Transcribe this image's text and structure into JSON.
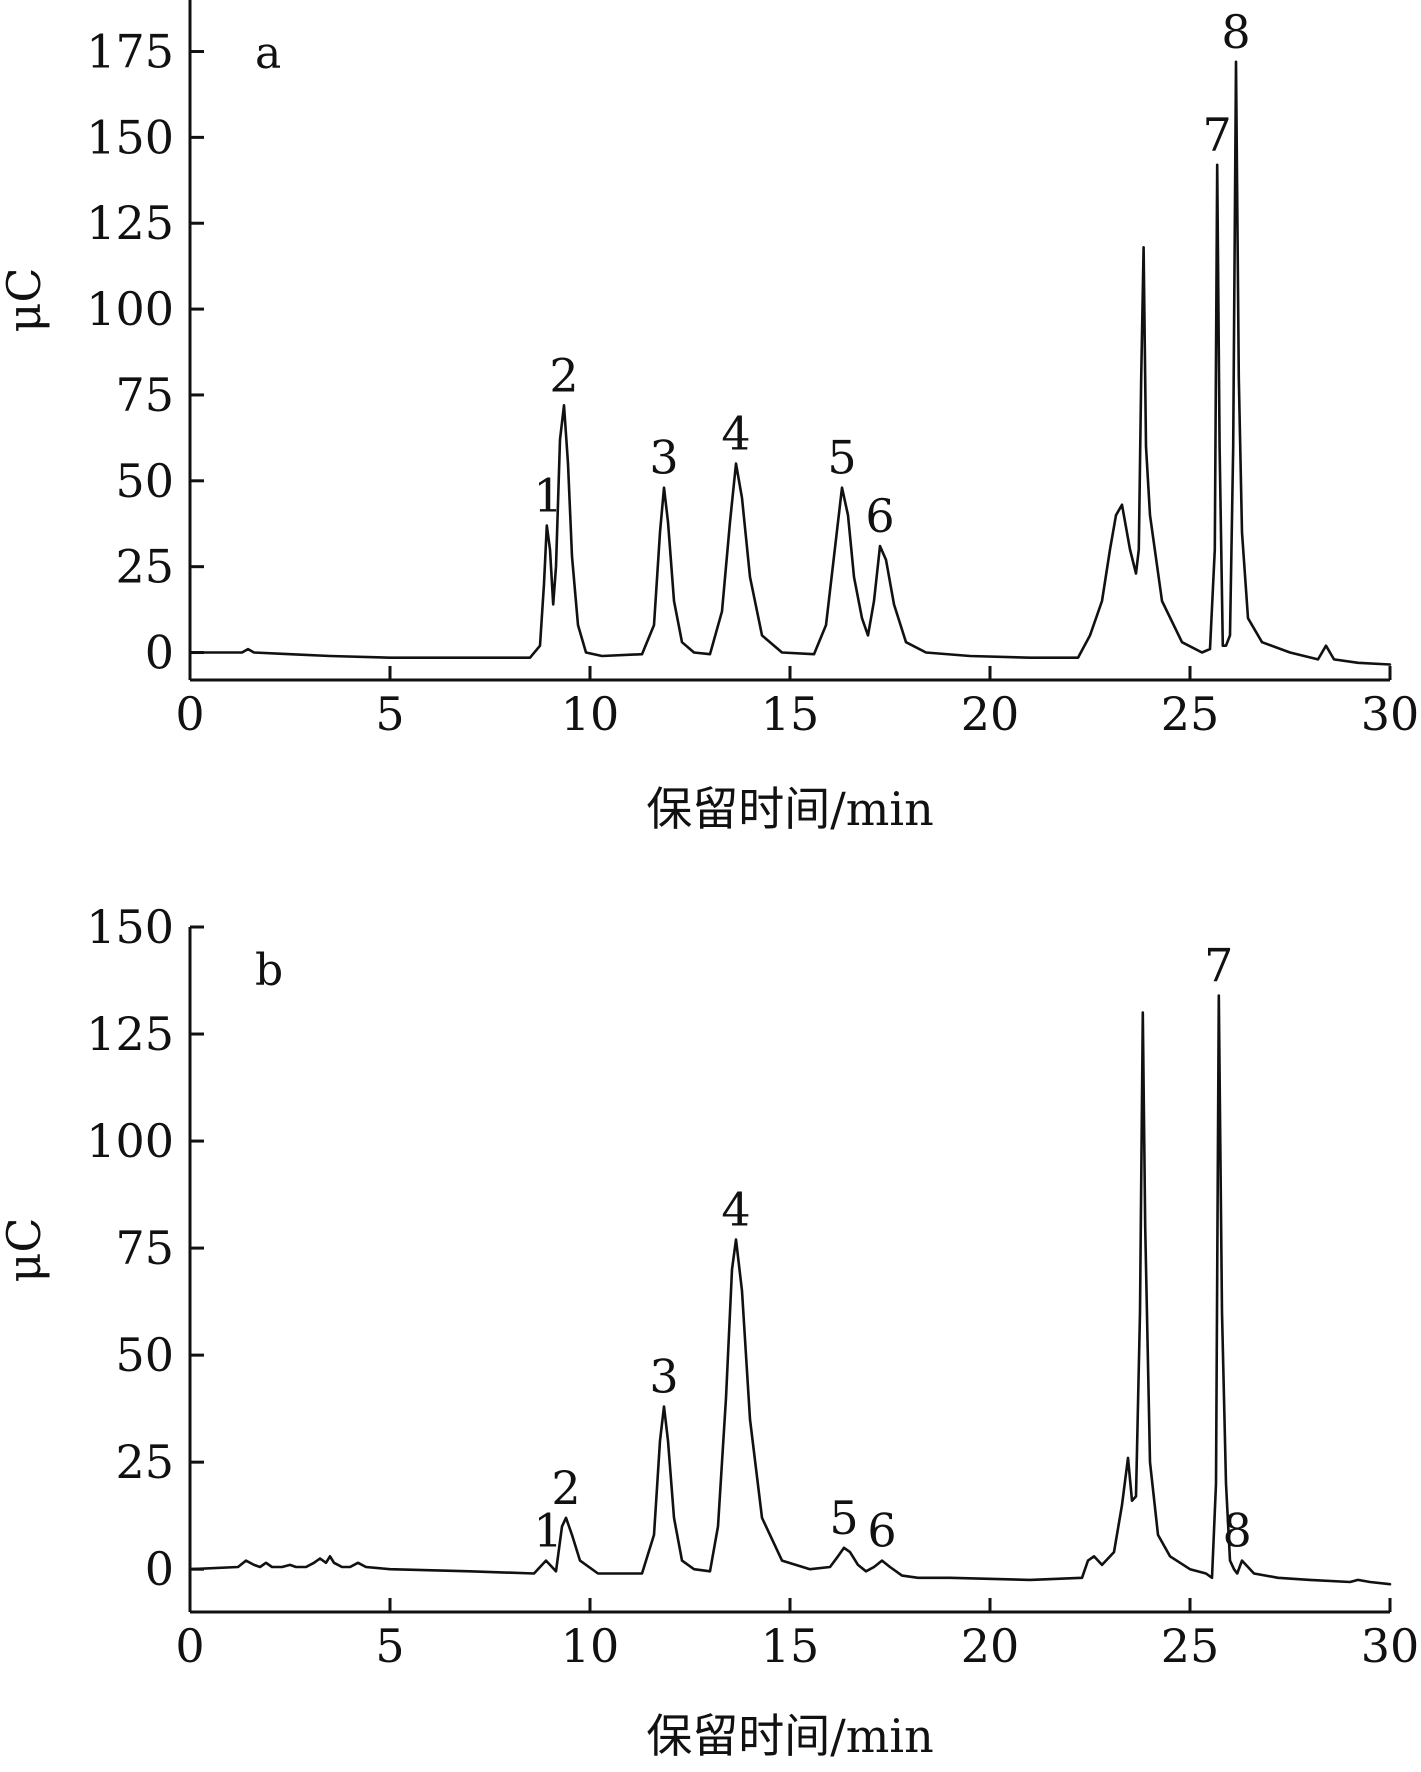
{
  "chart_data": [
    {
      "type": "line",
      "panel_label": "a",
      "xlabel": "保留时间/min",
      "ylabel": "μC",
      "xlim": [
        0,
        30
      ],
      "ylim": [
        -8,
        190
      ],
      "xticks": [
        0,
        5,
        10,
        15,
        20,
        25,
        30
      ],
      "yticks": [
        0,
        25,
        50,
        75,
        100,
        125,
        150,
        175
      ],
      "series": [
        {
          "x": [
            0,
            1.3,
            1.45,
            1.6,
            2.5,
            3.5,
            5,
            7,
            8.5,
            8.75,
            8.85,
            8.92,
            9.0,
            9.08,
            9.15,
            9.25,
            9.35,
            9.45,
            9.55,
            9.7,
            9.9,
            10.3,
            11.3,
            11.6,
            11.75,
            11.85,
            11.95,
            12.1,
            12.3,
            12.6,
            13.0,
            13.3,
            13.5,
            13.65,
            13.8,
            14.0,
            14.3,
            14.8,
            15.6,
            15.9,
            16.1,
            16.3,
            16.45,
            16.6,
            16.8,
            16.95,
            17.1,
            17.25,
            17.4,
            17.6,
            17.9,
            18.4,
            19.5,
            21,
            22.2,
            22.5,
            22.8,
            23.0,
            23.15,
            23.3,
            23.5,
            23.65,
            23.72,
            23.78,
            23.84,
            23.9,
            24.0,
            24.3,
            24.8,
            25.3,
            25.5,
            25.62,
            25.68,
            25.74,
            25.82,
            25.9,
            26.0,
            26.08,
            26.15,
            26.22,
            26.3,
            26.45,
            26.8,
            27.5,
            28.2,
            28.4,
            28.6,
            29.2,
            30
          ],
          "y": [
            0,
            0,
            1,
            0,
            -0.5,
            -1,
            -1.5,
            -1.5,
            -1.5,
            2,
            20,
            37,
            30,
            14,
            25,
            62,
            72,
            55,
            28,
            8,
            0,
            -1,
            -0.5,
            8,
            35,
            48,
            38,
            15,
            3,
            0,
            -0.5,
            12,
            38,
            55,
            45,
            22,
            5,
            0,
            -0.5,
            8,
            28,
            48,
            40,
            22,
            10,
            5,
            15,
            31,
            27,
            14,
            3,
            0,
            -1,
            -1.5,
            -1.5,
            5,
            15,
            30,
            40,
            43,
            30,
            23,
            30,
            80,
            118,
            60,
            40,
            15,
            3,
            0,
            1,
            30,
            142,
            60,
            2,
            2,
            5,
            60,
            172,
            80,
            35,
            10,
            3,
            0,
            -2,
            2,
            -2,
            -3,
            -3.5
          ],
          "color": "#111111"
        }
      ],
      "annotations": [
        {
          "text": "1",
          "x": 8.95,
          "y": 37
        },
        {
          "text": "2",
          "x": 9.35,
          "y": 72
        },
        {
          "text": "3",
          "x": 11.85,
          "y": 48
        },
        {
          "text": "4",
          "x": 13.65,
          "y": 55
        },
        {
          "text": "5",
          "x": 16.3,
          "y": 48
        },
        {
          "text": "6",
          "x": 17.25,
          "y": 31
        },
        {
          "text": "7",
          "x": 25.68,
          "y": 142
        },
        {
          "text": "8",
          "x": 26.15,
          "y": 172
        }
      ]
    },
    {
      "type": "line",
      "panel_label": "b",
      "xlabel": "保留时间/min",
      "ylabel": "μC",
      "xlim": [
        0,
        30
      ],
      "ylim": [
        -10,
        150
      ],
      "xticks": [
        0,
        5,
        10,
        15,
        20,
        25,
        30
      ],
      "yticks": [
        0,
        25,
        50,
        75,
        100,
        125,
        150
      ],
      "series": [
        {
          "x": [
            0,
            1.2,
            1.4,
            1.6,
            1.75,
            1.9,
            2.05,
            2.3,
            2.5,
            2.65,
            2.9,
            3.1,
            3.25,
            3.4,
            3.5,
            3.6,
            3.8,
            4.0,
            4.2,
            4.4,
            5,
            7,
            8.6,
            8.8,
            8.9,
            9.0,
            9.15,
            9.3,
            9.4,
            9.55,
            9.75,
            10.2,
            11.3,
            11.6,
            11.75,
            11.85,
            11.95,
            12.1,
            12.3,
            12.6,
            13.0,
            13.2,
            13.4,
            13.55,
            13.65,
            13.8,
            14.0,
            14.3,
            14.8,
            15.5,
            16.0,
            16.2,
            16.35,
            16.5,
            16.7,
            16.9,
            17.1,
            17.3,
            17.5,
            17.8,
            18.2,
            19,
            21,
            22.3,
            22.45,
            22.6,
            22.8,
            23.1,
            23.3,
            23.45,
            23.55,
            23.65,
            23.75,
            23.82,
            23.88,
            24.0,
            24.2,
            24.5,
            25.0,
            25.4,
            25.55,
            25.65,
            25.72,
            25.8,
            25.9,
            26.0,
            26.1,
            26.18,
            26.3,
            26.6,
            27.2,
            28.0,
            29.0,
            29.2,
            29.5,
            30
          ],
          "y": [
            0,
            0.5,
            2,
            1,
            0.5,
            1.5,
            0.5,
            0.5,
            1,
            0.5,
            0.5,
            1.5,
            2.5,
            1.5,
            3,
            1.5,
            0.5,
            0.5,
            1.5,
            0.5,
            0,
            -0.5,
            -1,
            1,
            2,
            1,
            -0.5,
            10,
            12,
            8,
            2,
            -1,
            -1,
            8,
            30,
            38,
            30,
            12,
            2,
            0,
            -0.5,
            10,
            40,
            70,
            77,
            65,
            35,
            12,
            2,
            0,
            0.5,
            3,
            5,
            4,
            1,
            -0.5,
            0.5,
            2,
            0.5,
            -1.5,
            -2,
            -2,
            -2.5,
            -2,
            2,
            3,
            1,
            4,
            15,
            26,
            16,
            17,
            60,
            130,
            80,
            25,
            8,
            3,
            0,
            -1,
            -2,
            20,
            134,
            60,
            20,
            2,
            0,
            -1,
            2,
            -1,
            -2,
            -2.5,
            -3,
            -2.5,
            -3,
            -3.5
          ],
          "color": "#111111"
        }
      ],
      "annotations": [
        {
          "text": "1",
          "x": 8.95,
          "y": 2
        },
        {
          "text": "2",
          "x": 9.4,
          "y": 12
        },
        {
          "text": "3",
          "x": 11.85,
          "y": 38
        },
        {
          "text": "4",
          "x": 13.65,
          "y": 77
        },
        {
          "text": "5",
          "x": 16.35,
          "y": 5
        },
        {
          "text": "6",
          "x": 17.3,
          "y": 2
        },
        {
          "text": "7",
          "x": 25.72,
          "y": 134
        },
        {
          "text": "8",
          "x": 26.18,
          "y": 2
        }
      ]
    }
  ]
}
